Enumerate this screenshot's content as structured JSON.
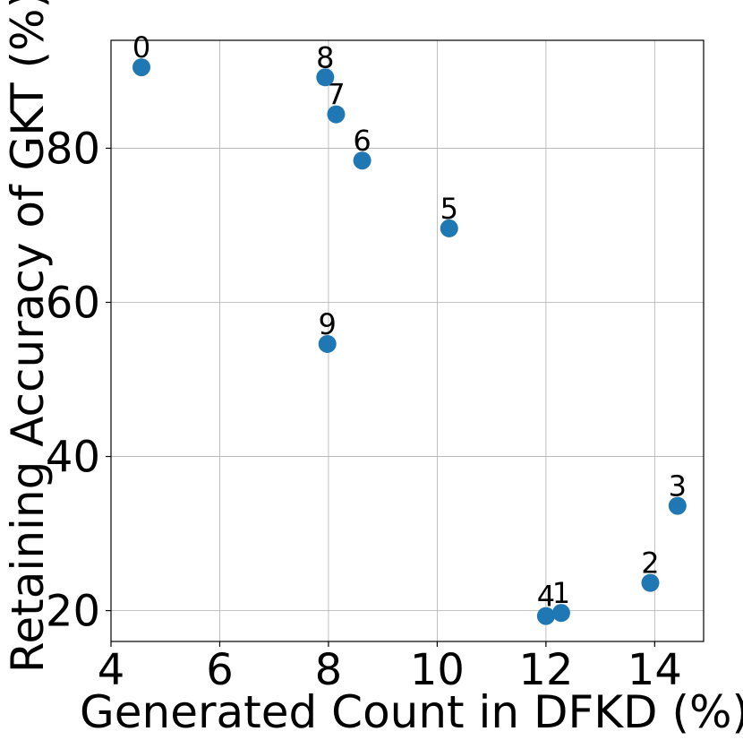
{
  "chart_data": {
    "type": "scatter",
    "title": "",
    "xlabel": "Generated Count in DFKD (%)",
    "ylabel": "Retaining Accuracy of GKT (%)",
    "xlim": [
      4,
      14.9
    ],
    "ylim": [
      16,
      94
    ],
    "xticks": [
      4,
      6,
      8,
      10,
      12,
      14
    ],
    "yticks": [
      20,
      40,
      60,
      80
    ],
    "grid": true,
    "marker_color": "#1f77b4",
    "points": [
      {
        "label": "0",
        "x": 4.56,
        "y": 90.5
      },
      {
        "label": "1",
        "x": 12.28,
        "y": 19.7
      },
      {
        "label": "2",
        "x": 13.92,
        "y": 23.6
      },
      {
        "label": "3",
        "x": 14.42,
        "y": 33.6
      },
      {
        "label": "4",
        "x": 12.0,
        "y": 19.3
      },
      {
        "label": "5",
        "x": 10.22,
        "y": 69.6
      },
      {
        "label": "6",
        "x": 8.62,
        "y": 78.4
      },
      {
        "label": "7",
        "x": 8.14,
        "y": 84.4
      },
      {
        "label": "8",
        "x": 7.94,
        "y": 89.2
      },
      {
        "label": "9",
        "x": 7.98,
        "y": 54.6
      }
    ]
  }
}
